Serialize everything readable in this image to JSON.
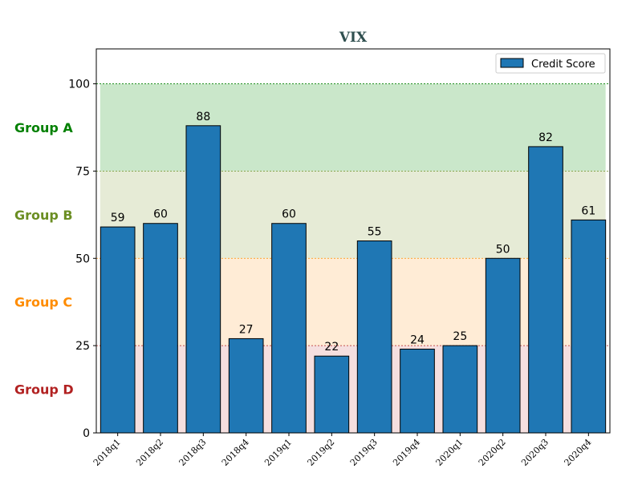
{
  "chart_data": {
    "type": "bar",
    "title": "VIX",
    "xlabel": "",
    "ylabel": "",
    "categories": [
      "2018q1",
      "2018q2",
      "2018q3",
      "2018q4",
      "2019q1",
      "2019q2",
      "2019q3",
      "2019q4",
      "2020q1",
      "2020q2",
      "2020q3",
      "2020q4"
    ],
    "series": [
      {
        "name": "Credit Score",
        "color": "#1f77b4",
        "values": [
          59,
          60,
          88,
          27,
          60,
          22,
          55,
          24,
          25,
          50,
          82,
          61
        ]
      }
    ],
    "ylim": [
      0,
      110
    ],
    "yticks": [
      "0",
      "25",
      "50",
      "75",
      "100"
    ],
    "legend_position": "top-right",
    "bands": [
      {
        "label": "Group A",
        "from": 75,
        "to": 100,
        "color": "#008000",
        "fill": "#2ca02c"
      },
      {
        "label": "Group B",
        "from": 50,
        "to": 75,
        "color": "#6b8e23",
        "fill": "#9ab05a"
      },
      {
        "label": "Group C",
        "from": 25,
        "to": 50,
        "color": "#ff8c00",
        "fill": "#ffb35a"
      },
      {
        "label": "Group D",
        "from": 0,
        "to": 25,
        "color": "#b22222",
        "fill": "#d88080"
      }
    ]
  }
}
